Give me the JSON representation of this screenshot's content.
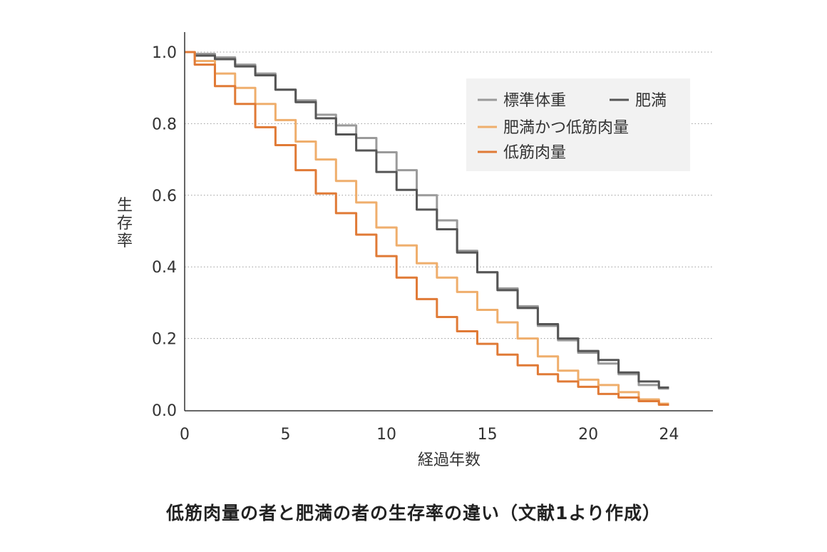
{
  "caption": "低筋肉量の者と肥満の者の生存率の違い（文献1より作成）",
  "chart_data": {
    "type": "line",
    "title": "",
    "xlabel": "経過年数",
    "ylabel": "生存率",
    "xlim": [
      0,
      26
    ],
    "ylim": [
      0,
      1.0
    ],
    "xticks": [
      0,
      5,
      10,
      15,
      20,
      24
    ],
    "yticks": [
      "0.0",
      "0.2",
      "0.4",
      "0.6",
      "0.8",
      "1.0"
    ],
    "grid": "horizontal-dotted",
    "legend_position": "top-right",
    "legend_rows": [
      [
        "標準体重",
        "肥満"
      ],
      [
        "肥満かつ低筋肉量"
      ],
      [
        "低筋肉量"
      ]
    ],
    "series": [
      {
        "name": "標準体重",
        "color": "#9a9a9a",
        "x": [
          0,
          1,
          2,
          3,
          4,
          5,
          6,
          7,
          8,
          9,
          10,
          11,
          12,
          13,
          14,
          15,
          16,
          17,
          18,
          19,
          20,
          21,
          22,
          23,
          24
        ],
        "y": [
          1.0,
          0.995,
          0.985,
          0.965,
          0.94,
          0.895,
          0.865,
          0.825,
          0.795,
          0.76,
          0.72,
          0.67,
          0.6,
          0.53,
          0.445,
          0.385,
          0.34,
          0.29,
          0.235,
          0.195,
          0.16,
          0.13,
          0.1,
          0.07,
          0.06
        ]
      },
      {
        "name": "肥満",
        "color": "#555555",
        "x": [
          0,
          1,
          2,
          3,
          4,
          5,
          6,
          7,
          8,
          9,
          10,
          11,
          12,
          13,
          14,
          15,
          16,
          17,
          18,
          19,
          20,
          21,
          22,
          23,
          24
        ],
        "y": [
          1.0,
          0.99,
          0.98,
          0.96,
          0.935,
          0.895,
          0.86,
          0.815,
          0.77,
          0.725,
          0.665,
          0.615,
          0.56,
          0.505,
          0.44,
          0.385,
          0.335,
          0.285,
          0.24,
          0.2,
          0.165,
          0.14,
          0.105,
          0.08,
          0.063
        ]
      },
      {
        "name": "肥満かつ低筋肉量",
        "color": "#efae6c",
        "x": [
          0,
          1,
          2,
          3,
          4,
          5,
          6,
          7,
          8,
          9,
          10,
          11,
          12,
          13,
          14,
          15,
          16,
          17,
          18,
          19,
          20,
          21,
          22,
          23,
          24
        ],
        "y": [
          1.0,
          0.975,
          0.94,
          0.9,
          0.855,
          0.81,
          0.75,
          0.7,
          0.64,
          0.58,
          0.51,
          0.46,
          0.41,
          0.37,
          0.33,
          0.28,
          0.245,
          0.2,
          0.15,
          0.11,
          0.085,
          0.07,
          0.05,
          0.03,
          0.018
        ]
      },
      {
        "name": "低筋肉量",
        "color": "#e07a36",
        "x": [
          0,
          1,
          2,
          3,
          4,
          5,
          6,
          7,
          8,
          9,
          10,
          11,
          12,
          13,
          14,
          15,
          16,
          17,
          18,
          19,
          20,
          21,
          22,
          23,
          24
        ],
        "y": [
          1.0,
          0.965,
          0.905,
          0.855,
          0.79,
          0.74,
          0.67,
          0.605,
          0.55,
          0.49,
          0.43,
          0.37,
          0.31,
          0.26,
          0.22,
          0.185,
          0.155,
          0.125,
          0.1,
          0.08,
          0.065,
          0.045,
          0.035,
          0.025,
          0.015
        ]
      }
    ]
  }
}
